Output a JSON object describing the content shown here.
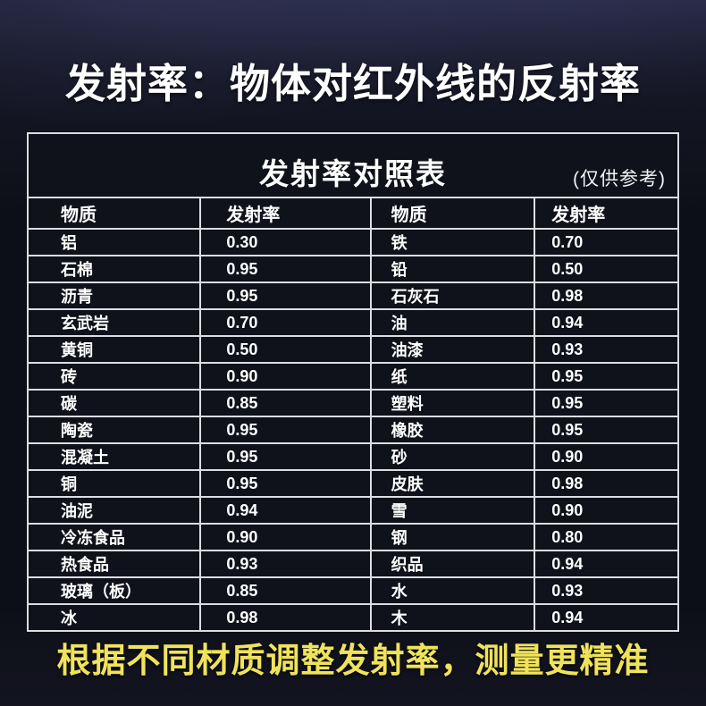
{
  "page": {
    "title": "发射率：物体对红外线的反射率",
    "footer_slogan": "根据不同材质调整发射率，测量更精准",
    "colors": {
      "background_dark": "#0d0f18",
      "table_border": "#dcdde2",
      "title_text": "#ffffff",
      "slogan_yellow": "#f0e35c"
    }
  },
  "table": {
    "title": "发射率对照表",
    "note": "(仅供参考)",
    "headers": [
      "物质",
      "发射率",
      "物质",
      "发射率"
    ],
    "rows": [
      [
        "铝",
        "0.30",
        "铁",
        "0.70"
      ],
      [
        "石棉",
        "0.95",
        "铅",
        "0.50"
      ],
      [
        "沥青",
        "0.95",
        "石灰石",
        "0.98"
      ],
      [
        "玄武岩",
        "0.70",
        "油",
        "0.94"
      ],
      [
        "黄铜",
        "0.50",
        "油漆",
        "0.93"
      ],
      [
        "砖",
        "0.90",
        "纸",
        "0.95"
      ],
      [
        "碳",
        "0.85",
        "塑料",
        "0.95"
      ],
      [
        "陶瓷",
        "0.95",
        "橡胶",
        "0.95"
      ],
      [
        "混凝土",
        "0.95",
        "砂",
        "0.90"
      ],
      [
        "铜",
        "0.95",
        "皮肤",
        "0.98"
      ],
      [
        "油泥",
        "0.94",
        "雪",
        "0.90"
      ],
      [
        "冷冻食品",
        "0.90",
        "钢",
        "0.80"
      ],
      [
        "热食品",
        "0.93",
        "织品",
        "0.94"
      ],
      [
        "玻璃（板）",
        "0.85",
        "水",
        "0.93"
      ],
      [
        "冰",
        "0.98",
        "木",
        "0.94"
      ]
    ]
  }
}
